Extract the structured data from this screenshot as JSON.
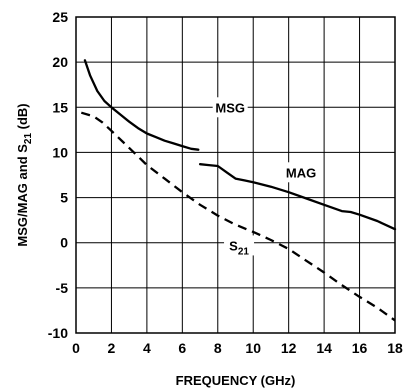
{
  "chart_data": {
    "type": "line",
    "xlabel": "FREQUENCY (GHz)",
    "ylabel": "MSG/MAG and S21 (dB)",
    "ylabel_parts": {
      "main": "MSG/MAG and S",
      "sub": "21",
      "tail": " (dB)"
    },
    "xlim": [
      0,
      18
    ],
    "ylim": [
      -10,
      25
    ],
    "x_ticks": [
      0,
      2,
      4,
      6,
      8,
      10,
      12,
      14,
      16,
      18
    ],
    "y_ticks": [
      -10,
      -5,
      0,
      5,
      10,
      15,
      20,
      25
    ],
    "grid": true,
    "series": [
      {
        "name": "MSG",
        "style": "solid",
        "x": [
          0.5,
          0.8,
          1.2,
          1.6,
          2.0,
          2.5,
          3.0,
          3.5,
          4.0,
          4.5,
          5.0,
          5.5,
          6.0,
          6.5,
          6.9
        ],
        "y": [
          20.2,
          18.5,
          16.8,
          15.7,
          15.0,
          14.2,
          13.4,
          12.7,
          12.1,
          11.7,
          11.3,
          11.0,
          10.7,
          10.4,
          10.3
        ]
      },
      {
        "name": "MAG",
        "style": "solid",
        "x": [
          7.0,
          7.5,
          8.0,
          8.5,
          9.0,
          9.5,
          10.0,
          11.0,
          12.0,
          13.0,
          14.0,
          15.0,
          15.5,
          16.0,
          17.0,
          18.0
        ],
        "y": [
          8.7,
          8.6,
          8.5,
          7.8,
          7.1,
          6.9,
          6.7,
          6.2,
          5.6,
          4.9,
          4.2,
          3.5,
          3.4,
          3.1,
          2.4,
          1.5
        ]
      },
      {
        "name": "S21",
        "label_main": "S",
        "label_sub": "21",
        "style": "dashed",
        "x": [
          0.3,
          1.0,
          1.5,
          2.0,
          3.0,
          4.0,
          5.0,
          6.0,
          7.0,
          8.0,
          9.0,
          10.0,
          11.0,
          12.0,
          13.0,
          14.0,
          15.0,
          16.0,
          17.0,
          18.0
        ],
        "y": [
          14.4,
          14.0,
          13.3,
          12.4,
          10.5,
          8.6,
          7.1,
          5.6,
          4.2,
          3.0,
          2.0,
          1.2,
          0.3,
          -0.7,
          -2.0,
          -3.3,
          -4.7,
          -6.0,
          -7.2,
          -8.6
        ]
      }
    ],
    "annotations": [
      {
        "text": "MSG",
        "x": 8.7,
        "y": 15.0
      },
      {
        "text": "MAG",
        "x": 12.7,
        "y": 7.8
      },
      {
        "text": "S21",
        "x": 9.2,
        "y": -0.3
      }
    ]
  }
}
